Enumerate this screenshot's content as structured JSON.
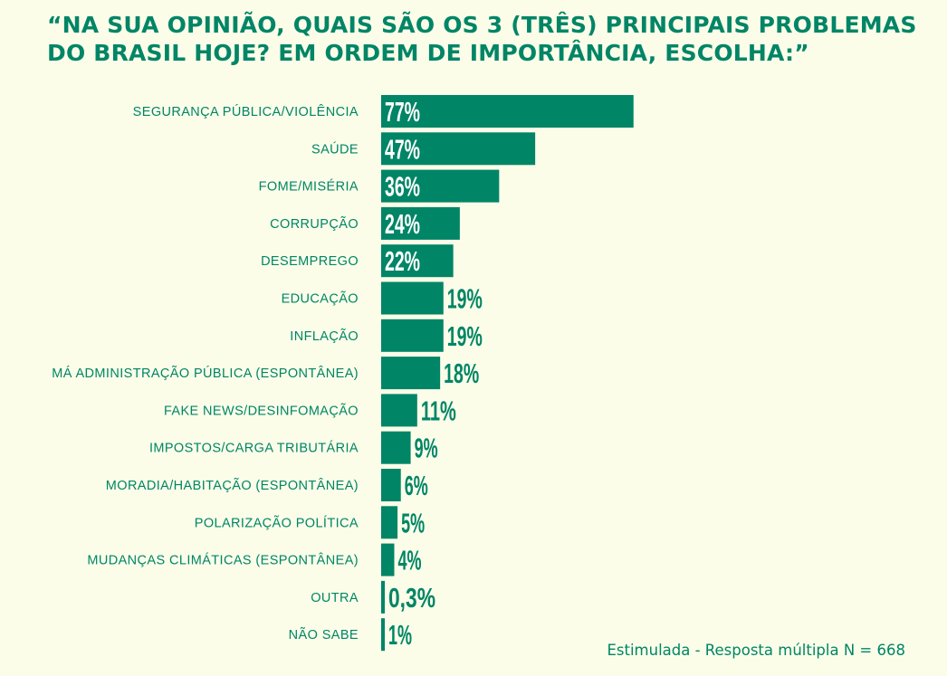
{
  "colors": {
    "background": "#fbfde9",
    "bar": "#008566",
    "text": "#008566",
    "value_inside": "#ffffff"
  },
  "chart_data": {
    "type": "bar",
    "orientation": "horizontal",
    "title_lines": [
      "“NA SUA OPINIÃO, QUAIS SÃO OS 3 (TRÊS) PRINCIPAIS PROBLEMAS",
      "DO BRASIL HOJE? EM ORDEM DE IMPORTÂNCIA, ESCOLHA:”"
    ],
    "categories": [
      "SEGURANÇA PÚBLICA/VIOLÊNCIA",
      "SAÚDE",
      "FOME/MISÉRIA",
      "CORRUPÇÃO",
      "DESEMPREGO",
      "EDUCAÇÃO",
      "INFLAÇÃO",
      "MÁ ADMINISTRAÇÃO PÚBLICA (ESPONTÂNEA)",
      "FAKE NEWS/DESINFOMAÇÃO",
      "IMPOSTOS/CARGA TRIBUTÁRIA",
      "MORADIA/HABITAÇÃO (ESPONTÂNEA)",
      "POLARIZAÇÃO POLÍTICA",
      "MUDANÇAS CLIMÁTICAS (ESPONTÂNEA)",
      "OUTRA",
      "NÃO SABE"
    ],
    "values": [
      77,
      47,
      36,
      24,
      22,
      19,
      19,
      18,
      11,
      9,
      6,
      5,
      4,
      0.3,
      1
    ],
    "value_labels": [
      "77%",
      "47%",
      "36%",
      "24%",
      "22%",
      "19%",
      "19%",
      "18%",
      "11%",
      "9%",
      "6%",
      "5%",
      "4%",
      "0,3%",
      "1%"
    ],
    "xlim": [
      0,
      100
    ],
    "grid": false,
    "legend": "none"
  },
  "footnote": "Estimulada - Resposta múltipla N = 668"
}
